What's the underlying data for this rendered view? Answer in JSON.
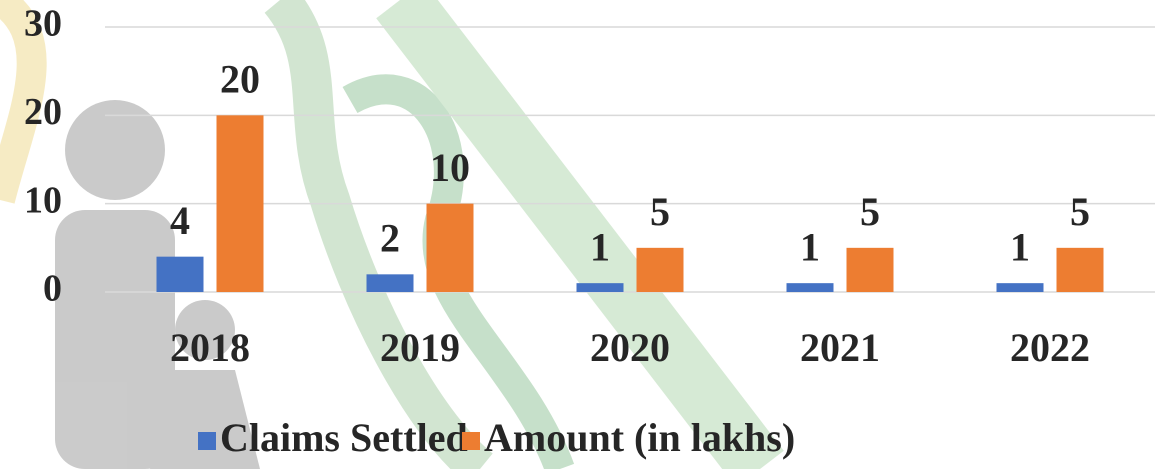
{
  "chart_data": {
    "type": "bar",
    "categories": [
      "2018",
      "2019",
      "2020",
      "2021",
      "2022"
    ],
    "series": [
      {
        "name": "Claims Settled",
        "color": "#4472c4",
        "values": [
          4,
          2,
          1,
          1,
          1
        ]
      },
      {
        "name": "Amount (in lakhs)",
        "color": "#ed7d31",
        "values": [
          20,
          10,
          5,
          5,
          5
        ]
      }
    ],
    "ylim": [
      0,
      30
    ],
    "yticks": [
      0,
      10,
      20,
      30
    ],
    "grid": true,
    "legend": "bottom"
  }
}
